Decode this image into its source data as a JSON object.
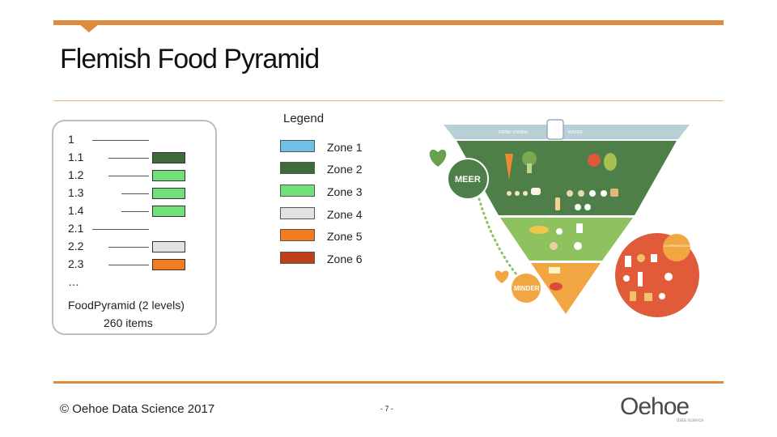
{
  "title": "Flemish Food Pyramid",
  "legend_title": "Legend",
  "hierarchy": {
    "levels": [
      "1",
      "1.1",
      "1.2",
      "1.3",
      "1.4",
      "2.1",
      "2.2",
      "2.3",
      "…"
    ],
    "summary_line1": "FoodPyramid (2 levels)",
    "summary_line2": "260 items"
  },
  "zones": [
    {
      "label": "Zone 1",
      "color": "#6ec1e4"
    },
    {
      "label": "Zone 2",
      "color": "#3e6b3c"
    },
    {
      "label": "Zone 3",
      "color": "#6fe07a"
    },
    {
      "label": "Zone 4",
      "color": "#e2e2e2"
    },
    {
      "label": "Zone 5",
      "color": "#f47b20"
    },
    {
      "label": "Zone 6",
      "color": "#c0401b"
    }
  ],
  "pyramid": {
    "top_left_label": "DRINK VOORAL",
    "top_right_label": "WATER",
    "meer_label": "MEER",
    "minder_label": "MINDER",
    "circle_label": "ZO WEINIG MOGELIJK",
    "colors": {
      "water": "#b9cfd8",
      "dark_green": "#4e7f49",
      "light_green": "#8ec25f",
      "orange": "#f2a641",
      "red": "#e15a3a"
    }
  },
  "footer": {
    "copyright": "© Oehoe Data Science 2017",
    "page": "- 7 -",
    "logo": "Oehoe",
    "logo_sub": "data science"
  }
}
